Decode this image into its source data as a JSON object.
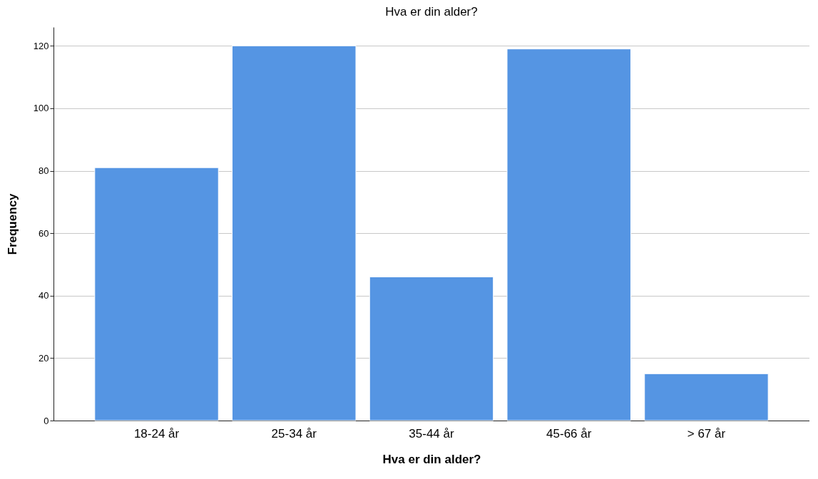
{
  "chart_data": {
    "type": "bar",
    "title": "Hva er din alder?",
    "xlabel": "Hva er din alder?",
    "ylabel": "Frequency",
    "categories": [
      "18-24 år",
      "25-34 år",
      "35-44 år",
      "45-66 år",
      "> 67 år"
    ],
    "values": [
      81,
      120,
      46,
      119,
      15
    ],
    "color": "#5595e3",
    "ylim": [
      0,
      126
    ],
    "yticks": [
      0,
      20,
      40,
      60,
      80,
      100,
      120
    ],
    "grid": "y"
  }
}
